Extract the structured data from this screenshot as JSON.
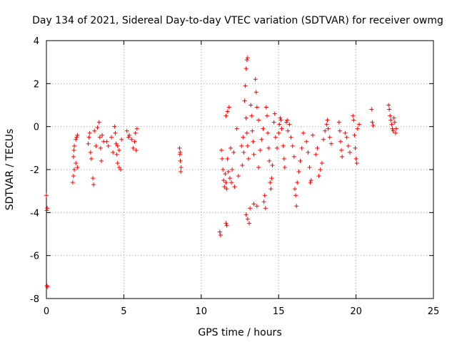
{
  "chart_data": {
    "type": "scatter",
    "title": "Day 134 of 2021, Sidereal Day-to-day VTEC variation (SDTVAR) for receiver owmg",
    "xlabel": "GPS time / hours",
    "ylabel": "SDTVAR / TECUs",
    "xlim": [
      0,
      25
    ],
    "ylim": [
      -8,
      4
    ],
    "xticks": [
      0,
      5,
      10,
      15,
      20,
      25
    ],
    "yticks": [
      -8,
      -6,
      -4,
      -2,
      0,
      2,
      4
    ],
    "xtick_labels": [
      "0",
      "5",
      "10",
      "15",
      "20",
      "25"
    ],
    "ytick_labels": [
      "-8",
      "-6",
      "-4",
      "-2",
      "0",
      "2",
      "4"
    ],
    "grid": true,
    "marker": "+",
    "color": "#ff0000",
    "series": [
      {
        "name": "SDTVAR",
        "points": [
          [
            0.0,
            -3.2
          ],
          [
            0.02,
            -3.9
          ],
          [
            0.05,
            -3.8
          ],
          [
            0.03,
            -7.4
          ],
          [
            0.06,
            -7.45
          ],
          [
            1.7,
            -2.6
          ],
          [
            1.75,
            -2.3
          ],
          [
            1.8,
            -2.0
          ],
          [
            1.75,
            -1.4
          ],
          [
            1.78,
            -1.1
          ],
          [
            1.8,
            -0.9
          ],
          [
            1.9,
            -0.6
          ],
          [
            1.95,
            -0.5
          ],
          [
            2.0,
            -0.4
          ],
          [
            1.9,
            -1.7
          ],
          [
            2.0,
            -1.9
          ],
          [
            2.7,
            -0.8
          ],
          [
            2.75,
            -0.5
          ],
          [
            2.8,
            -0.3
          ],
          [
            2.85,
            -1.2
          ],
          [
            2.9,
            -1.5
          ],
          [
            3.0,
            -2.4
          ],
          [
            3.05,
            -2.7
          ],
          [
            3.1,
            -0.2
          ],
          [
            3.2,
            -0.9
          ],
          [
            3.3,
            -0.05
          ],
          [
            3.4,
            0.2
          ],
          [
            3.45,
            -0.5
          ],
          [
            3.5,
            -1.0
          ],
          [
            3.55,
            -1.6
          ],
          [
            3.6,
            -0.4
          ],
          [
            3.7,
            -0.7
          ],
          [
            3.9,
            -0.7
          ],
          [
            4.0,
            -0.9
          ],
          [
            4.2,
            -0.5
          ],
          [
            4.3,
            -1.2
          ],
          [
            4.4,
            0.0
          ],
          [
            4.45,
            -0.3
          ],
          [
            4.5,
            -0.8
          ],
          [
            4.55,
            -1.3
          ],
          [
            4.6,
            -1.7
          ],
          [
            4.7,
            -1.9
          ],
          [
            4.8,
            -2.0
          ],
          [
            4.6,
            -0.9
          ],
          [
            4.7,
            -1.1
          ],
          [
            4.85,
            -0.6
          ],
          [
            5.2,
            -0.2
          ],
          [
            5.3,
            -0.5
          ],
          [
            5.35,
            -0.4
          ],
          [
            5.5,
            -0.6
          ],
          [
            5.6,
            -1.0
          ],
          [
            5.7,
            -0.7
          ],
          [
            5.75,
            -0.3
          ],
          [
            5.8,
            -1.1
          ],
          [
            5.85,
            -0.1
          ],
          [
            8.6,
            -1.0
          ],
          [
            8.62,
            -1.3
          ],
          [
            8.65,
            -1.6
          ],
          [
            8.7,
            -1.9
          ],
          [
            8.68,
            -2.1
          ],
          [
            8.64,
            -1.2
          ],
          [
            11.2,
            -4.9
          ],
          [
            11.25,
            -5.05
          ],
          [
            11.3,
            -1.1
          ],
          [
            11.35,
            -1.5
          ],
          [
            11.4,
            -2.0
          ],
          [
            11.45,
            -2.5
          ],
          [
            11.5,
            -2.8
          ],
          [
            11.55,
            -2.2
          ],
          [
            11.6,
            -4.5
          ],
          [
            11.65,
            -4.6
          ],
          [
            11.6,
            -2.6
          ],
          [
            11.65,
            -2.9
          ],
          [
            11.7,
            -1.5
          ],
          [
            11.75,
            -2.1
          ],
          [
            11.6,
            0.5
          ],
          [
            11.7,
            0.7
          ],
          [
            11.8,
            0.9
          ],
          [
            11.85,
            -2.4
          ],
          [
            11.9,
            -1.0
          ],
          [
            11.95,
            -2.6
          ],
          [
            12.0,
            -2.0
          ],
          [
            12.1,
            -1.2
          ],
          [
            12.15,
            -2.8
          ],
          [
            12.3,
            -0.1
          ],
          [
            12.4,
            -2.3
          ],
          [
            12.6,
            -0.9
          ],
          [
            12.65,
            -1.8
          ],
          [
            12.7,
            -0.5
          ],
          [
            12.75,
            -1.2
          ],
          [
            12.8,
            1.2
          ],
          [
            12.85,
            1.9
          ],
          [
            12.9,
            2.7
          ],
          [
            12.95,
            3.1
          ],
          [
            13.0,
            3.2
          ],
          [
            12.9,
            0.4
          ],
          [
            12.95,
            -0.3
          ],
          [
            13.0,
            -0.9
          ],
          [
            13.05,
            -1.5
          ],
          [
            12.9,
            -4.1
          ],
          [
            13.0,
            -4.3
          ],
          [
            13.1,
            -4.5
          ],
          [
            13.15,
            -3.8
          ],
          [
            13.2,
            1.0
          ],
          [
            13.25,
            0.5
          ],
          [
            13.3,
            -0.2
          ],
          [
            13.35,
            -0.7
          ],
          [
            13.4,
            -1.3
          ],
          [
            13.5,
            2.2
          ],
          [
            13.55,
            1.6
          ],
          [
            13.6,
            0.9
          ],
          [
            13.7,
            0.3
          ],
          [
            13.4,
            -3.6
          ],
          [
            13.6,
            -3.7
          ],
          [
            13.7,
            -1.9
          ],
          [
            13.8,
            -1.1
          ],
          [
            13.9,
            -0.6
          ],
          [
            14.0,
            -0.1
          ],
          [
            14.05,
            -3.5
          ],
          [
            14.1,
            -3.2
          ],
          [
            14.15,
            -3.8
          ],
          [
            14.2,
            0.9
          ],
          [
            14.25,
            0.5
          ],
          [
            14.3,
            -0.3
          ],
          [
            14.35,
            -1.0
          ],
          [
            14.4,
            -1.6
          ],
          [
            14.45,
            -2.6
          ],
          [
            14.5,
            -2.9
          ],
          [
            14.55,
            -2.4
          ],
          [
            14.6,
            -1.8
          ],
          [
            14.7,
            0.2
          ],
          [
            14.75,
            0.6
          ],
          [
            14.8,
            -0.5
          ],
          [
            14.9,
            -1.0
          ],
          [
            15.0,
            -0.3
          ],
          [
            15.05,
            0.1
          ],
          [
            15.1,
            0.4
          ],
          [
            15.15,
            0.3
          ],
          [
            15.2,
            -0.1
          ],
          [
            15.3,
            -0.9
          ],
          [
            15.35,
            -1.5
          ],
          [
            15.4,
            -1.9
          ],
          [
            15.5,
            0.2
          ],
          [
            15.55,
            0.3
          ],
          [
            15.6,
            -0.2
          ],
          [
            15.7,
            0.1
          ],
          [
            15.8,
            -0.5
          ],
          [
            15.9,
            -0.9
          ],
          [
            16.0,
            -1.4
          ],
          [
            16.05,
            -2.9
          ],
          [
            16.1,
            -3.2
          ],
          [
            16.15,
            -3.7
          ],
          [
            16.2,
            -2.6
          ],
          [
            16.3,
            -2.1
          ],
          [
            16.4,
            -1.6
          ],
          [
            16.5,
            -1.0
          ],
          [
            16.6,
            -0.3
          ],
          [
            16.8,
            -0.7
          ],
          [
            16.9,
            -1.2
          ],
          [
            17.0,
            -1.9
          ],
          [
            17.05,
            -2.6
          ],
          [
            17.1,
            -2.5
          ],
          [
            17.2,
            -0.4
          ],
          [
            17.4,
            -1.3
          ],
          [
            17.5,
            -1.0
          ],
          [
            17.6,
            -2.3
          ],
          [
            17.7,
            -2.0
          ],
          [
            17.8,
            -1.7
          ],
          [
            17.9,
            -0.6
          ],
          [
            18.0,
            -0.2
          ],
          [
            18.1,
            0.1
          ],
          [
            18.15,
            0.3
          ],
          [
            18.2,
            -0.1
          ],
          [
            18.3,
            -0.5
          ],
          [
            18.4,
            -0.8
          ],
          [
            18.9,
            0.2
          ],
          [
            18.95,
            -0.2
          ],
          [
            19.0,
            -0.7
          ],
          [
            19.05,
            -1.1
          ],
          [
            19.1,
            -1.4
          ],
          [
            19.3,
            -0.3
          ],
          [
            19.4,
            -0.5
          ],
          [
            19.5,
            -0.9
          ],
          [
            19.6,
            -1.2
          ],
          [
            19.8,
            0.5
          ],
          [
            19.85,
            0.3
          ],
          [
            19.9,
            -0.4
          ],
          [
            19.95,
            -1.0
          ],
          [
            20.0,
            -1.5
          ],
          [
            20.05,
            -1.7
          ],
          [
            20.1,
            -0.1
          ],
          [
            20.2,
            0.1
          ],
          [
            21.0,
            0.8
          ],
          [
            21.05,
            0.2
          ],
          [
            21.1,
            0.05
          ],
          [
            22.1,
            1.0
          ],
          [
            22.15,
            0.8
          ],
          [
            22.2,
            0.5
          ],
          [
            22.25,
            0.3
          ],
          [
            22.3,
            0.1
          ],
          [
            22.35,
            -0.1
          ],
          [
            22.4,
            -0.2
          ],
          [
            22.45,
            0.4
          ],
          [
            22.5,
            0.2
          ],
          [
            22.55,
            -0.3
          ],
          [
            22.6,
            -0.1
          ]
        ]
      }
    ]
  }
}
